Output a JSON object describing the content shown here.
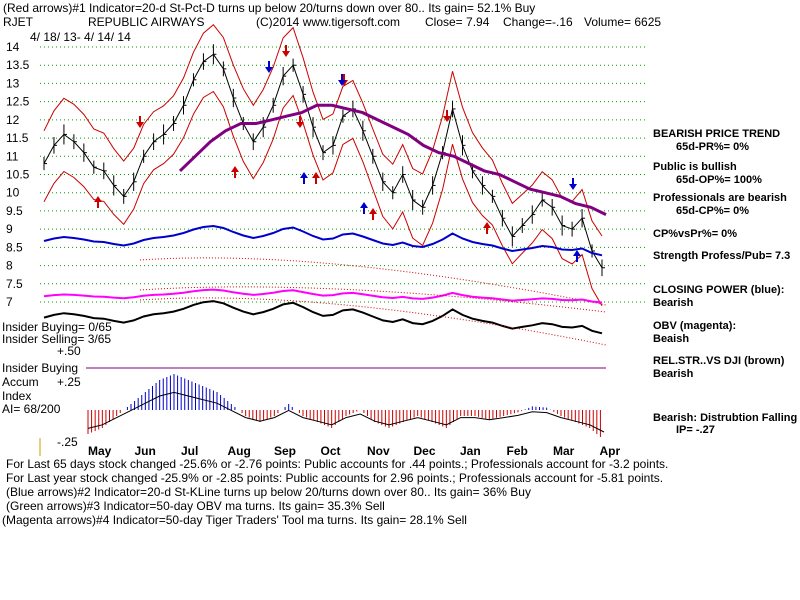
{
  "header": {
    "line1": "(Red arrows)#1 Indicator=20-d St-Pct-D turns up below 20/turns down over 80.. Its gain= 52.1% Buy",
    "ticker": "RJET",
    "company": "REPUBLIC AIRWAYS",
    "copyright": "(C)2014 www.tigersoft.com",
    "close": "Close=  7.94",
    "change": "Change=-.16",
    "volume": "Volume= 6625",
    "date_range": "4/ 18/ 13-  4/ 14/ 14"
  },
  "right_panel": {
    "items": [
      {
        "title": "BEARISH PRICE TREND",
        "value": "65d-PR%= 0%"
      },
      {
        "title": "Public is bullish",
        "value": "65d-OP%= 100%"
      },
      {
        "title": "Professionals are bearish",
        "value": "65d-CP%= 0%"
      },
      {
        "title": "CP%vsPr%=  0%",
        "value": ""
      },
      {
        "title": "Strength Profess/Pub= 7.3",
        "value": ""
      },
      {
        "title": "CLOSING POWER (blue):",
        "value": "Bearish"
      },
      {
        "title": "OBV (magenta):",
        "value": "Beaish"
      },
      {
        "title": "REL.STR..VS DJI (brown)",
        "value": "Bearish"
      },
      {
        "title": "Bearish: Distrubtion Falling",
        "value": "IP= -.27"
      }
    ]
  },
  "left_panel": {
    "insider_buying_count": "Insider Buying= 0/65",
    "insider_selling_count": "Insider Selling= 3/65",
    "plus50": "+.50",
    "insider_buying": "Insider Buying",
    "accum": "Accum",
    "plus25": "+.25",
    "index": "Index",
    "ai": "AI= 68/200",
    "minus25": "-.25"
  },
  "footer": {
    "lines": [
      "For Last 65 days stock changed -25.6% or -2.76 points:  Public accounts for  .44 points.;  Professionals account for -3.2 points.",
      "For Last year stock changed -25.9% or -2.85 points:  Public accounts for  2.96 points.;  Professionals account for -5.81 points.",
      "(Blue arrows)#2 Indicator=20-d St-KLine turns up below 20/turns down over 80.. Its gain= 36% Buy",
      "(Green arrows)#3 Indicator=50-day OBV ma turns. Its gain= 35.3% Sell",
      "(Magenta arrows)#4 Indicator=50-day Tiger Traders' Tool ma turns. Its gain= 28.1% Sell"
    ]
  },
  "colors": {
    "price": "#000000",
    "band": "#cc0000",
    "ma": "#800080",
    "closing_power": "#0000cc",
    "obv": "#ff00ff",
    "relstr": "#000000",
    "grid": "#00a000",
    "accum_pos": "#0000cc",
    "accum_neg": "#cc0000"
  },
  "chart_data": {
    "type": "line",
    "ylim": [
      7,
      14
    ],
    "y_ticks": [
      "14",
      "13.5",
      "13",
      "12.5",
      "12",
      "11.5",
      "11",
      "10.5",
      "10",
      "9.5",
      "9",
      "8.5",
      "8",
      "7.5",
      "7"
    ],
    "y_tick_values": [
      14,
      13.5,
      13,
      12.5,
      12,
      11.5,
      11,
      10.5,
      10,
      9.5,
      9,
      8.5,
      8,
      7.5,
      7
    ],
    "months": [
      "May",
      "Jun",
      "Jul",
      "Aug",
      "Sep",
      "Oct",
      "Nov",
      "Dec",
      "Jan",
      "Feb",
      "Mar",
      "Apr"
    ],
    "price_close": [
      10.8,
      11.3,
      11.6,
      11.4,
      11.1,
      10.7,
      10.6,
      10.2,
      9.9,
      10.3,
      11.0,
      11.4,
      11.6,
      11.9,
      12.4,
      13.1,
      13.6,
      13.8,
      13.4,
      12.6,
      11.9,
      11.4,
      11.8,
      12.4,
      13.2,
      13.5,
      12.7,
      11.8,
      11.1,
      11.3,
      12.1,
      12.3,
      11.7,
      11.0,
      10.3,
      10.0,
      10.5,
      9.8,
      9.6,
      10.2,
      11.1,
      12.3,
      11.3,
      10.6,
      10.2,
      9.9,
      9.3,
      8.8,
      9.1,
      9.4,
      9.8,
      9.6,
      9.1,
      9.0,
      9.3,
      8.4,
      7.94
    ],
    "ma": [
      null,
      null,
      null,
      null,
      null,
      null,
      null,
      null,
      null,
      null,
      null,
      null,
      10.6,
      11.0,
      11.4,
      11.7,
      11.9,
      11.9,
      12.0,
      12.1,
      12.2,
      12.4,
      12.4,
      12.3,
      12.2,
      12.0,
      11.8,
      11.6,
      11.3,
      11.1,
      11.0,
      10.8,
      10.6,
      10.5,
      10.3,
      10.1,
      10.0,
      9.9,
      9.7,
      9.6,
      9.4
    ],
    "annotations": [
      "#1",
      "#2",
      "#3",
      "#4"
    ],
    "accum_ylim": [
      -0.25,
      0.5
    ],
    "accum_values": [
      -0.2,
      -0.15,
      -0.05,
      0.05,
      0.15,
      0.25,
      0.3,
      0.25,
      0.2,
      0.15,
      0.05,
      -0.05,
      -0.1,
      -0.05,
      0.05,
      -0.05,
      -0.1,
      -0.15,
      -0.05,
      0.0,
      -0.1,
      -0.15,
      -0.1,
      -0.05,
      -0.1,
      -0.15,
      -0.05,
      -0.05,
      -0.08,
      -0.05,
      -0.02,
      0.03,
      0.02,
      -0.05,
      -0.1,
      -0.15,
      -0.25
    ]
  }
}
